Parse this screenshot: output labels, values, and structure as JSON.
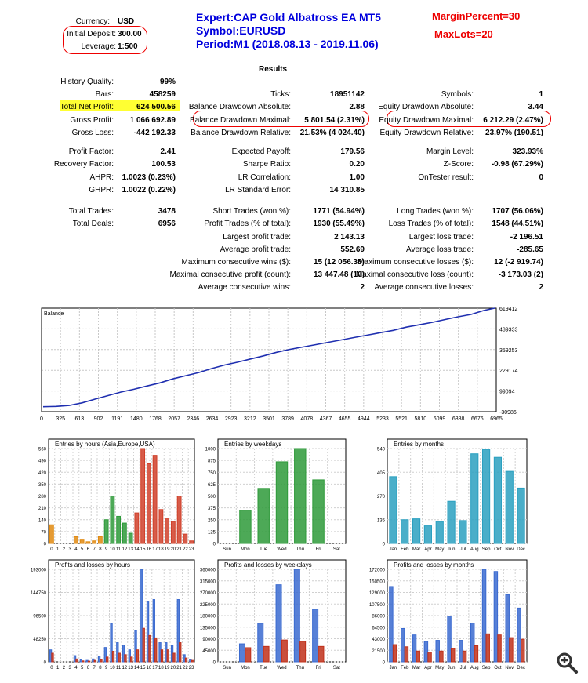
{
  "header": {
    "currency_label": "Currency:",
    "currency_value": "USD",
    "deposit_label": "Initial Deposit:",
    "deposit_value": "300.00",
    "leverage_label": "Leverage:",
    "leverage_value": "1:500",
    "expert": "Expert:CAP Gold Albatross EA MT5",
    "symbol": "Symbol:EURUSD",
    "period": "Period:M1 (2018.08.13 - 2019.11.06)",
    "margin_percent": "MarginPercent=30",
    "max_lots": "MaxLots=20",
    "results": "Results"
  },
  "stats": [
    {
      "label": "History Quality:",
      "value": "99%",
      "col": 0,
      "row": 0
    },
    {
      "label": "Bars:",
      "value": "458259",
      "col": 0,
      "row": 1
    },
    {
      "label": "Total Net Profit:",
      "value": "624 500.56",
      "col": 0,
      "row": 2
    },
    {
      "label": "Gross Profit:",
      "value": "1 066 692.89",
      "col": 0,
      "row": 3
    },
    {
      "label": "Gross Loss:",
      "value": "-442 192.33",
      "col": 0,
      "row": 4
    },
    {
      "label": "Profit Factor:",
      "value": "2.41",
      "col": 0,
      "row": 5.5
    },
    {
      "label": "Recovery Factor:",
      "value": "100.53",
      "col": 0,
      "row": 6.5
    },
    {
      "label": "AHPR:",
      "value": "1.0023 (0.23%)",
      "col": 0,
      "row": 7.5
    },
    {
      "label": "GHPR:",
      "value": "1.0022 (0.22%)",
      "col": 0,
      "row": 8.5
    },
    {
      "label": "Total Trades:",
      "value": "3478",
      "col": 0,
      "row": 10.2
    },
    {
      "label": "Total Deals:",
      "value": "6956",
      "col": 0,
      "row": 11.2
    },
    {
      "label": "Ticks:",
      "value": "18951142",
      "col": 1,
      "row": 1
    },
    {
      "label": "Balance Drawdown Absolute:",
      "value": "2.88",
      "col": 1,
      "row": 2
    },
    {
      "label": "Balance Drawdown Maximal:",
      "value": "5 801.54 (2.31%)",
      "col": 1,
      "row": 3
    },
    {
      "label": "Balance Drawdown Relative:",
      "value": "21.53% (4 024.40)",
      "col": 1,
      "row": 4
    },
    {
      "label": "Expected Payoff:",
      "value": "179.56",
      "col": 1,
      "row": 5.5
    },
    {
      "label": "Sharpe Ratio:",
      "value": "0.20",
      "col": 1,
      "row": 6.5
    },
    {
      "label": "LR Correlation:",
      "value": "1.00",
      "col": 1,
      "row": 7.5
    },
    {
      "label": "LR Standard Error:",
      "value": "14 310.85",
      "col": 1,
      "row": 8.5
    },
    {
      "label": "Short Trades (won %):",
      "value": "1771 (54.94%)",
      "col": 1,
      "row": 10.2
    },
    {
      "label": "Profit Trades (% of total):",
      "value": "1930 (55.49%)",
      "col": 1,
      "row": 11.2
    },
    {
      "label": "Largest profit trade:",
      "value": "2 143.13",
      "col": 1,
      "row": 12.2
    },
    {
      "label": "Average profit trade:",
      "value": "552.69",
      "col": 1,
      "row": 13.2
    },
    {
      "label": "Maximum consecutive wins ($):",
      "value": "15 (12 056.38)",
      "col": 1,
      "row": 14.2
    },
    {
      "label": "Maximal consecutive profit (count):",
      "value": "13 447.48 (10)",
      "col": 1,
      "row": 15.2
    },
    {
      "label": "Average consecutive wins:",
      "value": "2",
      "col": 1,
      "row": 16.2
    },
    {
      "label": "Symbols:",
      "value": "1",
      "col": 2,
      "row": 1
    },
    {
      "label": "Equity Drawdown Absolute:",
      "value": "3.44",
      "col": 2,
      "row": 2
    },
    {
      "label": "Equity Drawdown Maximal:",
      "value": "6 212.29 (2.47%)",
      "col": 2,
      "row": 3
    },
    {
      "label": "Equity Drawdown Relative:",
      "value": "23.97% (190.51)",
      "col": 2,
      "row": 4
    },
    {
      "label": "Margin Level:",
      "value": "323.93%",
      "col": 2,
      "row": 5.5
    },
    {
      "label": "Z-Score:",
      "value": "-0.98 (67.29%)",
      "col": 2,
      "row": 6.5
    },
    {
      "label": "OnTester result:",
      "value": "0",
      "col": 2,
      "row": 7.5
    },
    {
      "label": "Long Trades (won %):",
      "value": "1707 (56.06%)",
      "col": 2,
      "row": 10.2
    },
    {
      "label": "Loss Trades (% of total):",
      "value": "1548 (44.51%)",
      "col": 2,
      "row": 11.2
    },
    {
      "label": "Largest loss trade:",
      "value": "-2 196.51",
      "col": 2,
      "row": 12.2
    },
    {
      "label": "Average loss trade:",
      "value": "-285.65",
      "col": 2,
      "row": 13.2
    },
    {
      "label": "Maximum consecutive losses ($):",
      "value": "12 (-2 919.74)",
      "col": 2,
      "row": 14.2
    },
    {
      "label": "Maximal consecutive loss (count):",
      "value": "-3 173.03 (2)",
      "col": 2,
      "row": 15.2
    },
    {
      "label": "Average consecutive losses:",
      "value": "2",
      "col": 2,
      "row": 16.2
    }
  ],
  "colors": {
    "balance_line": "#1f2fb0",
    "green": "#2e9a3a",
    "red": "#d0402a",
    "orange": "#e08a10",
    "teal": "#2aa0c0",
    "blue": "#3a6ad0",
    "loss": "#c0301a"
  },
  "chart_data": [
    {
      "type": "line",
      "title": "Balance",
      "x_ticks": [
        "0",
        "325",
        "613",
        "902",
        "1191",
        "1480",
        "1768",
        "2057",
        "2346",
        "2634",
        "2923",
        "3212",
        "3501",
        "3789",
        "4078",
        "4367",
        "4655",
        "4944",
        "5233",
        "5521",
        "5810",
        "6099",
        "6388",
        "6676",
        "6965"
      ],
      "y_ticks": [
        "619412",
        "489333",
        "359253",
        "229174",
        "99094",
        "-30986"
      ],
      "ylim": [
        -30986,
        619412
      ],
      "x": [
        0,
        100,
        200,
        400,
        600,
        800,
        1000,
        1200,
        1400,
        1600,
        1800,
        2000,
        2200,
        2400,
        2600,
        2800,
        3000,
        3200,
        3400,
        3600,
        3800,
        4000,
        4200,
        4400,
        4600,
        4800,
        5000,
        5200,
        5400,
        5600,
        5800,
        6000,
        6200,
        6400,
        6600,
        6800,
        6965
      ],
      "y": [
        300,
        900,
        2000,
        8000,
        24000,
        48000,
        70000,
        92000,
        110000,
        130000,
        150000,
        175000,
        195000,
        215000,
        240000,
        262000,
        280000,
        300000,
        320000,
        342000,
        360000,
        375000,
        390000,
        405000,
        420000,
        435000,
        450000,
        465000,
        480000,
        500000,
        515000,
        530000,
        548000,
        565000,
        580000,
        605000,
        619412
      ]
    },
    {
      "type": "bar",
      "title": "Entries by hours (Asia,Europe,USA)",
      "categories": [
        "0",
        "1",
        "2",
        "3",
        "4",
        "5",
        "6",
        "7",
        "8",
        "9",
        "10",
        "11",
        "12",
        "13",
        "14",
        "15",
        "16",
        "17",
        "18",
        "19",
        "20",
        "21",
        "22",
        "23"
      ],
      "y_ticks": [
        "560",
        "490",
        "420",
        "350",
        "280",
        "210",
        "140",
        "70",
        "0"
      ],
      "ylim": [
        0,
        560
      ],
      "values": [
        110,
        0,
        0,
        0,
        40,
        20,
        10,
        15,
        40,
        140,
        280,
        160,
        120,
        60,
        180,
        560,
        470,
        520,
        200,
        150,
        130,
        280,
        55,
        15
      ]
    },
    {
      "type": "bar",
      "title": "Entries by weekdays",
      "categories": [
        "Sun",
        "Mon",
        "Tue",
        "Wed",
        "Thu",
        "Fri",
        "Sat"
      ],
      "y_ticks": [
        "1000",
        "875",
        "750",
        "625",
        "500",
        "375",
        "250",
        "125",
        "0"
      ],
      "ylim": [
        0,
        1000
      ],
      "values": [
        0,
        350,
        580,
        860,
        1000,
        670,
        0
      ]
    },
    {
      "type": "bar",
      "title": "Entries by months",
      "categories": [
        "Jan",
        "Feb",
        "Mar",
        "Apr",
        "May",
        "Jun",
        "Jul",
        "Aug",
        "Sep",
        "Oct",
        "Nov",
        "Dec"
      ],
      "y_ticks": [
        "540",
        "405",
        "270",
        "135",
        "0"
      ],
      "ylim": [
        0,
        540
      ],
      "values": [
        380,
        135,
        140,
        100,
        125,
        240,
        130,
        510,
        535,
        490,
        410,
        315
      ]
    },
    {
      "type": "bar",
      "title": "Profits and losses by hours",
      "categories": [
        "0",
        "1",
        "2",
        "3",
        "4",
        "5",
        "6",
        "7",
        "8",
        "9",
        "10",
        "11",
        "12",
        "13",
        "14",
        "15",
        "16",
        "17",
        "18",
        "19",
        "20",
        "21",
        "22",
        "23"
      ],
      "y_ticks": [
        "193000",
        "144750",
        "96500",
        "48250",
        "0"
      ],
      "ylim": [
        0,
        193000
      ],
      "series": [
        {
          "values": [
            25000,
            0,
            0,
            0,
            13000,
            5000,
            3000,
            6000,
            12000,
            30000,
            80000,
            40000,
            35000,
            25000,
            65000,
            193000,
            125000,
            130000,
            40000,
            40000,
            35000,
            130000,
            15000,
            5000
          ]
        },
        {
          "values": [
            18000,
            0,
            0,
            0,
            6000,
            2000,
            1500,
            3000,
            4000,
            10000,
            22000,
            18000,
            15000,
            10000,
            25000,
            70000,
            55000,
            50000,
            25000,
            25000,
            18000,
            40000,
            8000,
            3000
          ]
        }
      ]
    },
    {
      "type": "bar",
      "title": "Profits and losses by weekdays",
      "categories": [
        "Sun",
        "Mon",
        "Tue",
        "Wed",
        "Thu",
        "Fri",
        "Sat"
      ],
      "y_ticks": [
        "360000",
        "315000",
        "270000",
        "225000",
        "180000",
        "135000",
        "90000",
        "45000",
        "0"
      ],
      "ylim": [
        0,
        360000
      ],
      "series": [
        {
          "values": [
            0,
            70000,
            150000,
            300000,
            360000,
            205000,
            0
          ]
        },
        {
          "values": [
            0,
            55000,
            60000,
            85000,
            80000,
            60000,
            0
          ]
        }
      ]
    },
    {
      "type": "bar",
      "title": "Profits and losses by months",
      "categories": [
        "Jan",
        "Feb",
        "Mar",
        "Apr",
        "May",
        "Jun",
        "Jul",
        "Aug",
        "Sep",
        "Oct",
        "Nov",
        "Dec"
      ],
      "y_ticks": [
        "172000",
        "150500",
        "129000",
        "107500",
        "86000",
        "64500",
        "43000",
        "21500",
        "0"
      ],
      "ylim": [
        0,
        172000
      ],
      "series": [
        {
          "values": [
            140000,
            62000,
            50000,
            38000,
            40000,
            85000,
            40000,
            72000,
            172000,
            168000,
            125000,
            100000
          ]
        },
        {
          "values": [
            32000,
            28000,
            20000,
            18000,
            20000,
            25000,
            20000,
            30000,
            52000,
            50000,
            45000,
            42000
          ]
        }
      ]
    }
  ]
}
